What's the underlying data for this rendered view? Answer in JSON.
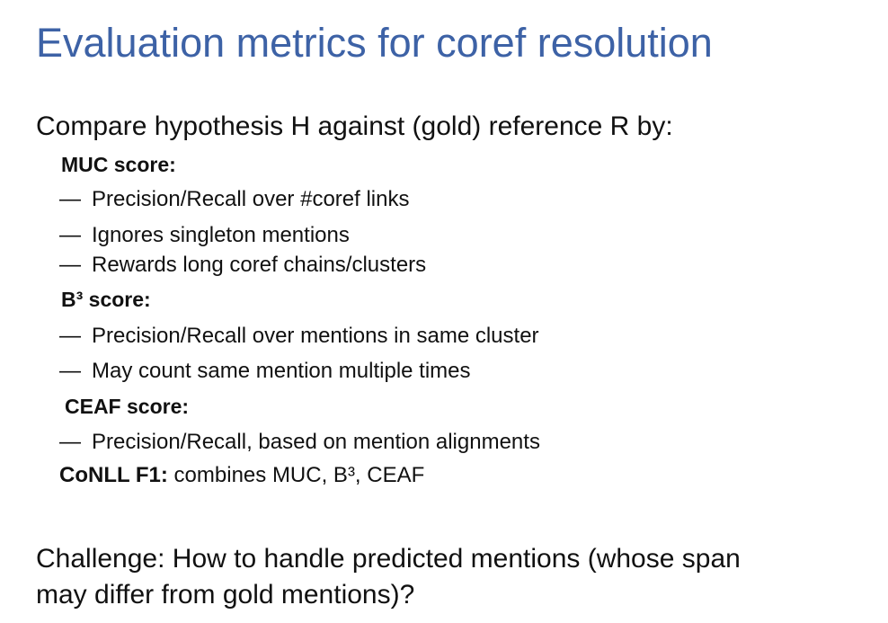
{
  "slide": {
    "title": "Evaluation metrics for coref resolution",
    "intro": "Compare hypothesis H against (gold) reference R by:",
    "sections": [
      {
        "heading": "MUC score:",
        "items": [
          "Precision/Recall over #coref links",
          "Ignores singleton mentions",
          "Rewards long coref chains/clusters"
        ]
      },
      {
        "heading": "B³ score:",
        "items": [
          "Precision/Recall over mentions in same cluster",
          "May count same mention multiple times"
        ]
      },
      {
        "heading": "CEAF score:",
        "items": [
          "Precision/Recall, based on mention alignments"
        ]
      }
    ],
    "dash": "—",
    "conll": {
      "label": "CoNLL F1:",
      "text": " combines MUC, B³, CEAF"
    },
    "challenge": {
      "line1": "Challenge: How to handle predicted mentions (whose span",
      "line2": "may differ from gold mentions)?"
    },
    "colors": {
      "title": "#3d62a6",
      "text": "#111111",
      "background": "#ffffff"
    }
  }
}
